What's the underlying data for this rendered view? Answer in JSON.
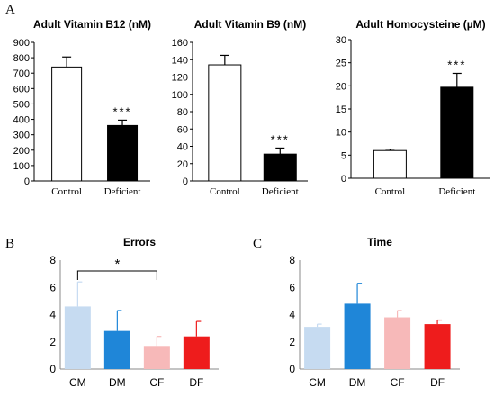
{
  "panel_labels": [
    "A",
    "B",
    "C"
  ],
  "chart_data": [
    {
      "type": "bar",
      "title": "Adult Vitamin B12 (nM)",
      "categories": [
        "Control",
        "Deficient"
      ],
      "values": [
        740,
        360
      ],
      "errors": [
        65,
        35
      ],
      "colors": [
        "#ffffff",
        "#000000"
      ],
      "ylim": [
        0,
        900
      ],
      "yticks": [
        0,
        100,
        200,
        300,
        400,
        500,
        600,
        700,
        800,
        900
      ],
      "annotations": [
        {
          "category": "Deficient",
          "text": "***"
        }
      ]
    },
    {
      "type": "bar",
      "title": "Adult Vitamin B9 (nM)",
      "categories": [
        "Control",
        "Deficient"
      ],
      "values": [
        134,
        31
      ],
      "errors": [
        11,
        7
      ],
      "colors": [
        "#ffffff",
        "#000000"
      ],
      "ylim": [
        0,
        160
      ],
      "yticks": [
        0,
        20,
        40,
        60,
        80,
        100,
        120,
        140,
        160
      ],
      "annotations": [
        {
          "category": "Deficient",
          "text": "***"
        }
      ]
    },
    {
      "type": "bar",
      "title": "Adult Homocysteine  (µM)",
      "categories": [
        "Control",
        "Deficient"
      ],
      "values": [
        6,
        19.7
      ],
      "errors": [
        0.3,
        3
      ],
      "colors": [
        "#ffffff",
        "#000000"
      ],
      "ylim": [
        0,
        30
      ],
      "yticks": [
        0,
        5,
        10,
        15,
        20,
        25,
        30
      ],
      "annotations": [
        {
          "category": "Deficient",
          "text": "***"
        }
      ]
    },
    {
      "type": "bar",
      "title": "Errors",
      "categories": [
        "CM",
        "DM",
        "CF",
        "DF"
      ],
      "values": [
        4.6,
        2.8,
        1.7,
        2.4
      ],
      "errors": [
        1.8,
        1.5,
        0.7,
        1.1
      ],
      "colors": [
        "#c6dbf1",
        "#1f86d8",
        "#f7b9b9",
        "#ee1c1c"
      ],
      "ylim": [
        0,
        8
      ],
      "yticks": [
        0,
        2,
        4,
        6,
        8
      ],
      "significance": {
        "from": "CM",
        "to": "CF",
        "text": "*"
      }
    },
    {
      "type": "bar",
      "title": "Time",
      "categories": [
        "CM",
        "DM",
        "CF",
        "DF"
      ],
      "values": [
        3.1,
        4.8,
        3.8,
        3.3
      ],
      "errors": [
        0.2,
        1.5,
        0.5,
        0.3
      ],
      "colors": [
        "#c6dbf1",
        "#1f86d8",
        "#f7b9b9",
        "#ee1c1c"
      ],
      "ylim": [
        0,
        8
      ],
      "yticks": [
        0,
        2,
        4,
        6,
        8
      ]
    }
  ]
}
